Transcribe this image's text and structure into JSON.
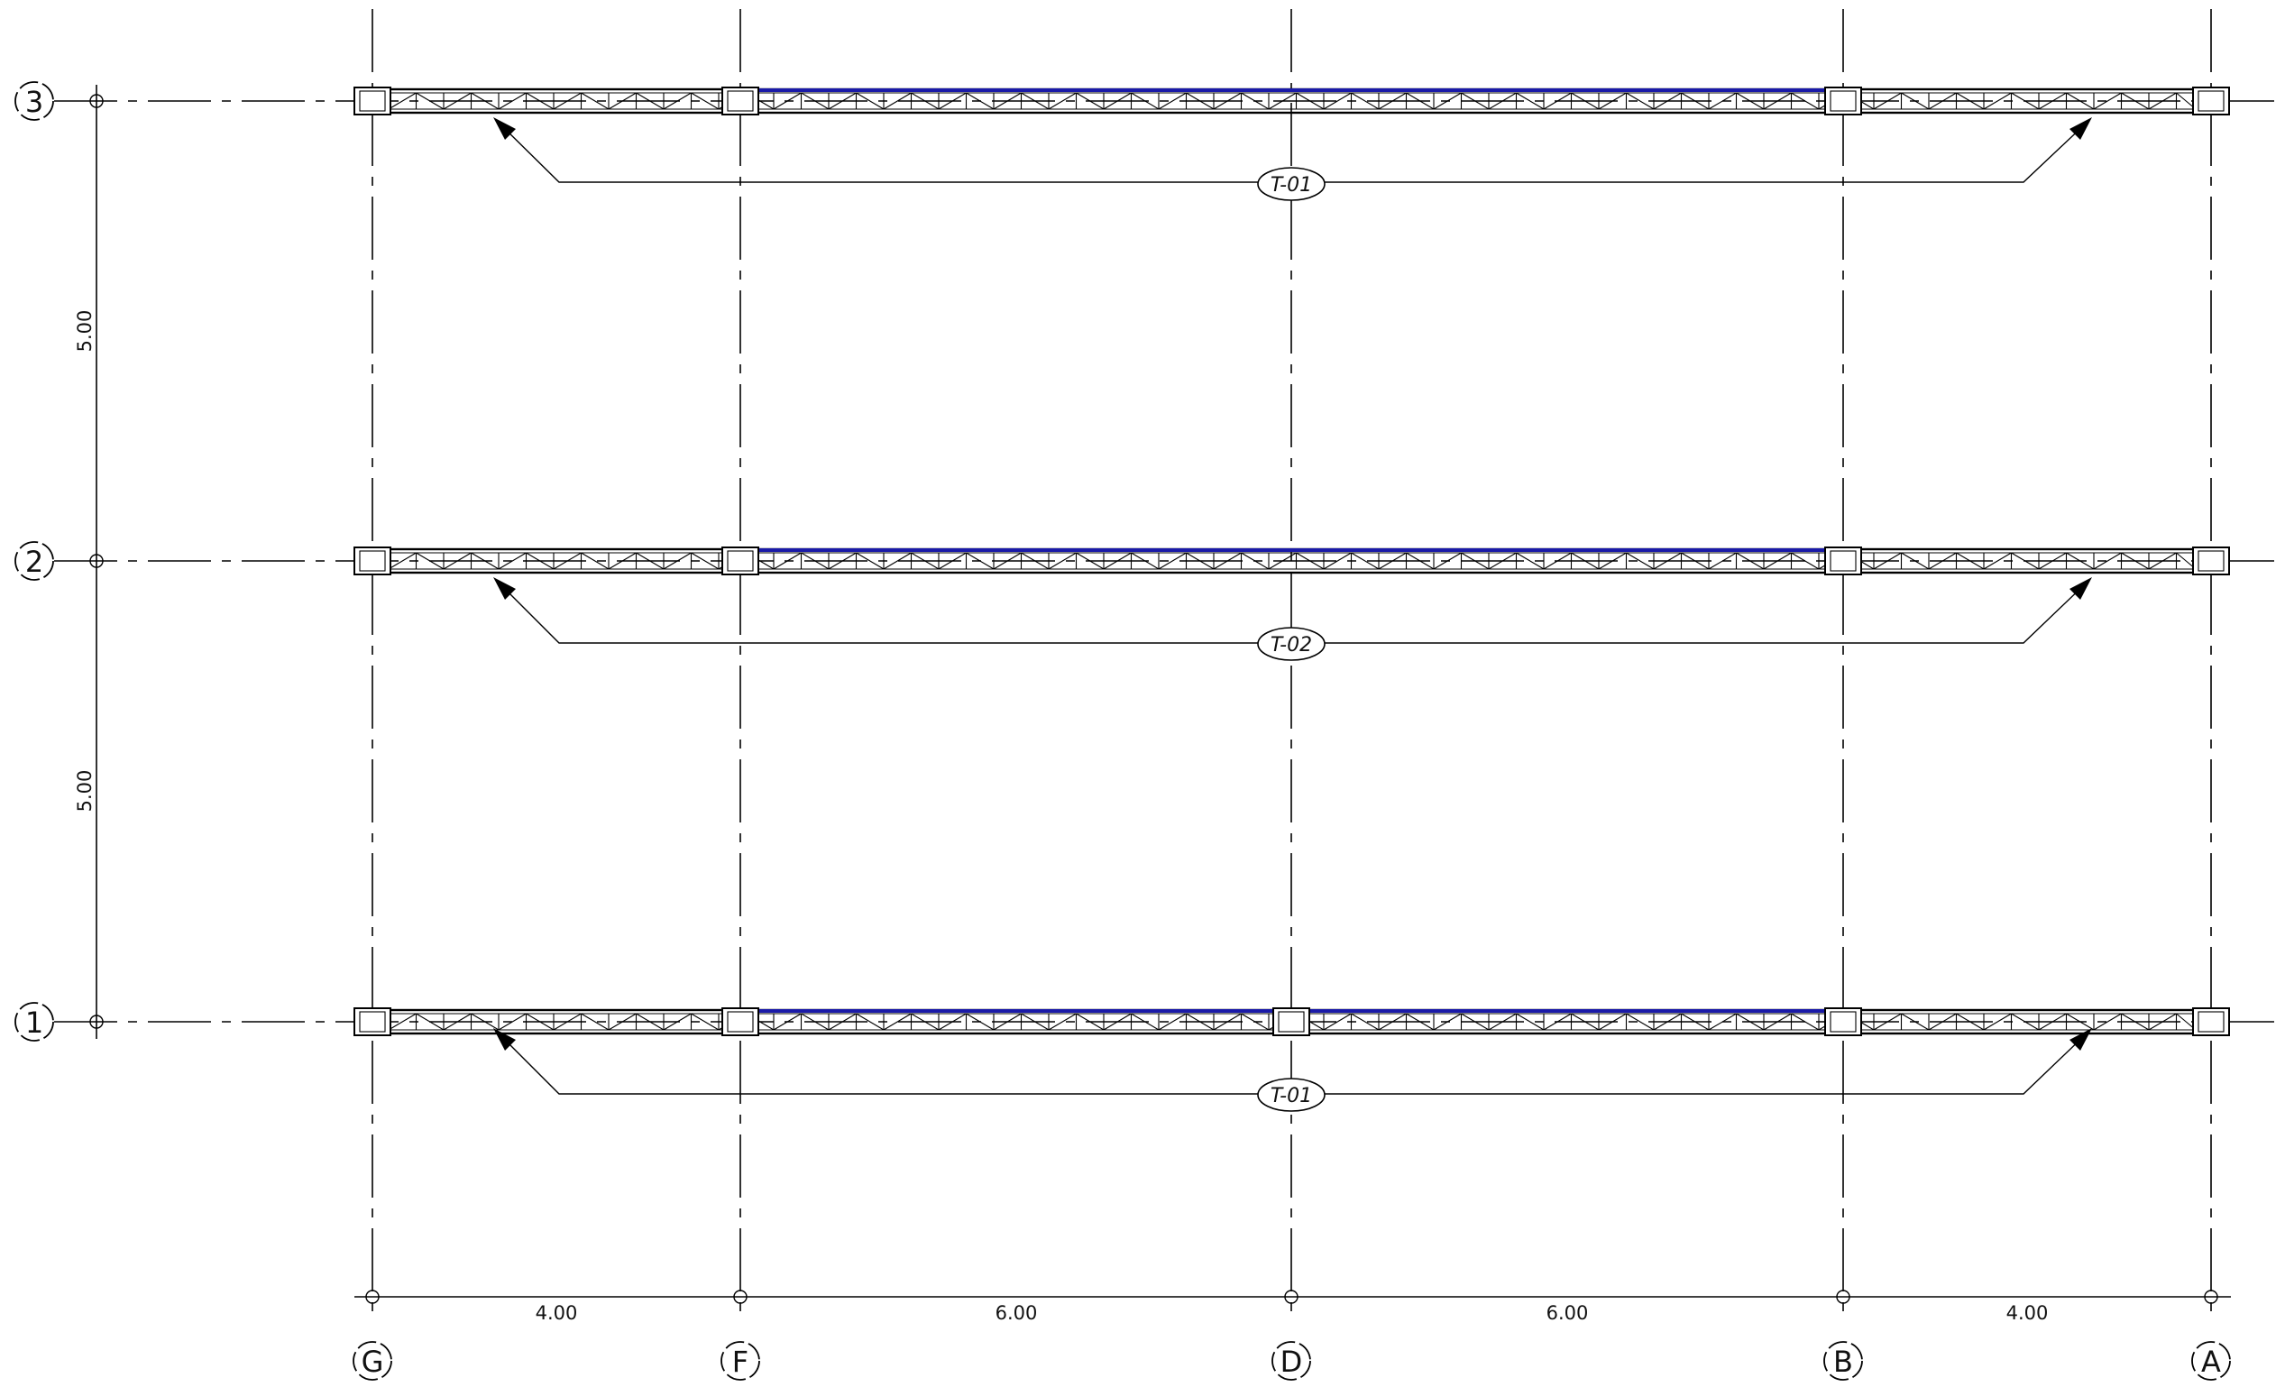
{
  "drawing": {
    "axes_columns": [
      {
        "id": "G"
      },
      {
        "id": "F"
      },
      {
        "id": "D"
      },
      {
        "id": "B"
      },
      {
        "id": "A"
      }
    ],
    "axes_rows": [
      {
        "id": "3"
      },
      {
        "id": "2"
      },
      {
        "id": "1"
      }
    ],
    "column_spacings": [
      "4.00",
      "6.00",
      "6.00",
      "4.00"
    ],
    "row_spacings": [
      "5.00",
      "5.00"
    ],
    "trusses": [
      {
        "row": "3",
        "tag": "T-01"
      },
      {
        "row": "2",
        "tag": "T-02"
      },
      {
        "row": "1",
        "tag": "T-01"
      }
    ],
    "colors": {
      "line": "#000000",
      "highlight": "#1a1aa8",
      "background": "#ffffff"
    }
  }
}
